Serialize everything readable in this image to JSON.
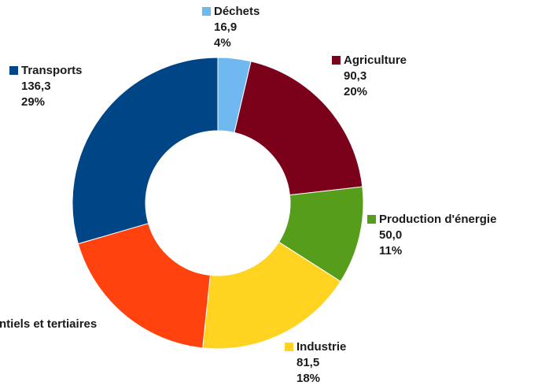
{
  "chart_data": {
    "type": "pie",
    "donut": true,
    "title": "",
    "legend": "none",
    "slices": [
      {
        "name": "Déchets",
        "value": 16.9,
        "value_label": "16,9",
        "percent_label": "4%",
        "color": "#6fb8f0"
      },
      {
        "name": "Agriculture",
        "value": 90.3,
        "value_label": "90,3",
        "percent_label": "20%",
        "color": "#7b0019"
      },
      {
        "name": "Production d'énergie",
        "value": 50.0,
        "value_label": "50,0",
        "percent_label": "11%",
        "color": "#579d1c"
      },
      {
        "name": "Industrie",
        "value": 81.5,
        "value_label": "81,5",
        "percent_label": "18%",
        "color": "#ffd320"
      },
      {
        "name": "ntiels et tertiaires",
        "value": 87.0,
        "value_label": "",
        "percent_label": "",
        "color": "#ff420e"
      },
      {
        "name": "Transports",
        "value": 136.3,
        "value_label": "136,3",
        "percent_label": "29%",
        "color": "#004586"
      }
    ]
  }
}
